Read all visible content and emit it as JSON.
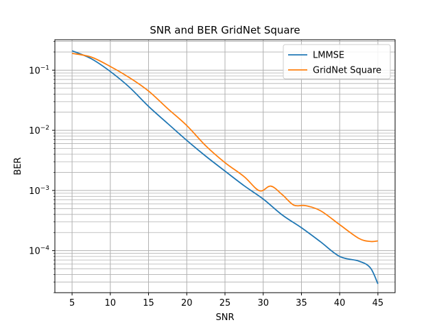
{
  "chart_data": {
    "type": "line",
    "title": "SNR and BER GridNet Square",
    "xlabel": "SNR",
    "ylabel": "BER",
    "xlim": [
      2.75,
      47.25
    ],
    "ylim": [
      2e-05,
      0.32
    ],
    "yscale": "log",
    "x_ticks": [
      5,
      10,
      15,
      20,
      25,
      30,
      35,
      40,
      45
    ],
    "y_ticks": [
      {
        "value": 0.0001,
        "base": "10",
        "exp": "−4"
      },
      {
        "value": 0.001,
        "base": "10",
        "exp": "−3"
      },
      {
        "value": 0.01,
        "base": "10",
        "exp": "−2"
      },
      {
        "value": 0.1,
        "base": "10",
        "exp": "−1"
      }
    ],
    "grid": true,
    "grid_minor_y": true,
    "legend_position": "top-right",
    "series": [
      {
        "name": "LMMSE",
        "color": "#1f77b4",
        "x": [
          5,
          7.5,
          10,
          12.5,
          15,
          17.5,
          20,
          22.5,
          25,
          27.5,
          30,
          32.5,
          35,
          37.5,
          40,
          42.5,
          44,
          45
        ],
        "y": [
          0.21,
          0.155,
          0.095,
          0.052,
          0.025,
          0.013,
          0.0068,
          0.0037,
          0.0021,
          0.0012,
          0.00072,
          0.00039,
          0.00024,
          0.00014,
          8e-05,
          6.7e-05,
          5.2e-05,
          2.8e-05
        ]
      },
      {
        "name": "GridNet Square",
        "color": "#ff7f0e",
        "x": [
          5,
          7.5,
          10,
          12.5,
          15,
          17.5,
          20,
          22.5,
          25,
          27.5,
          29.5,
          31,
          32.5,
          34,
          35.5,
          37.5,
          40,
          42.5,
          44,
          45
        ],
        "y": [
          0.19,
          0.165,
          0.115,
          0.075,
          0.045,
          0.023,
          0.012,
          0.0055,
          0.0029,
          0.0017,
          0.00099,
          0.00118,
          0.00085,
          0.00057,
          0.00056,
          0.00046,
          0.00027,
          0.00016,
          0.000142,
          0.000145
        ]
      }
    ]
  }
}
